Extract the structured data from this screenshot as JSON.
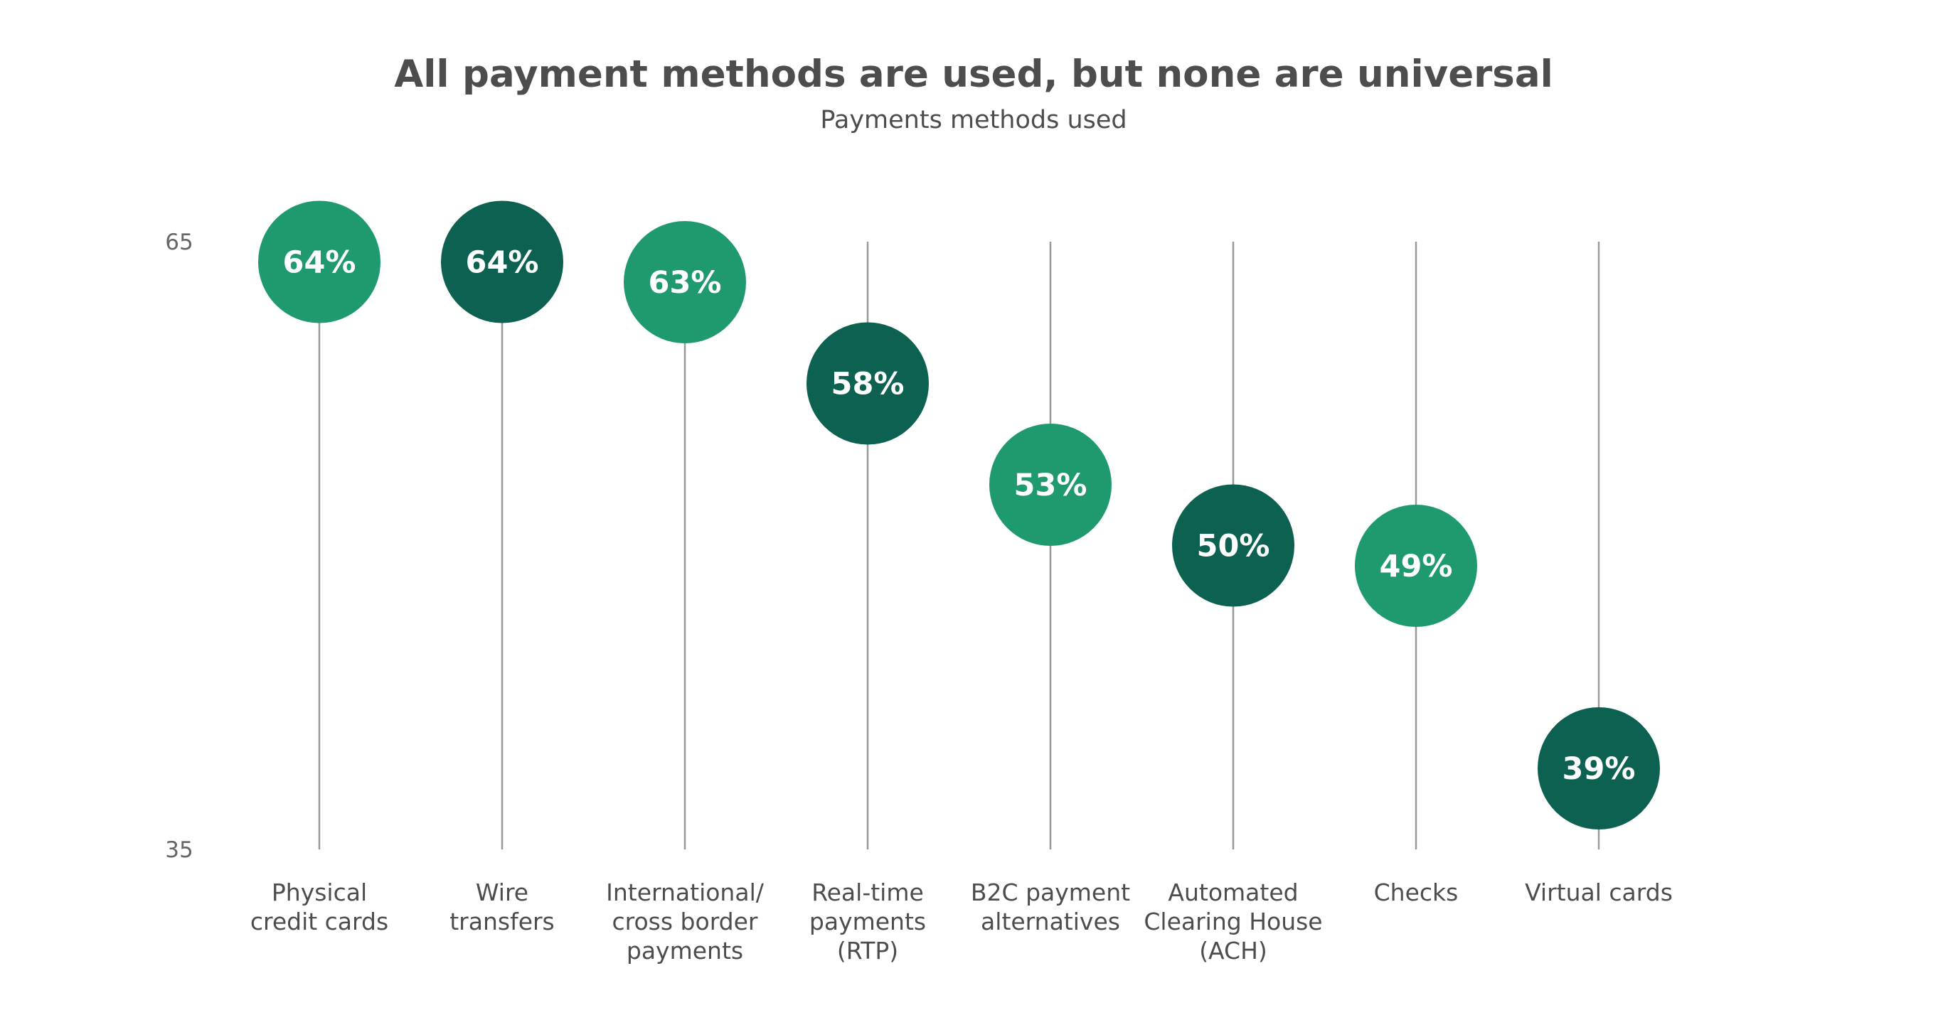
{
  "colors": {
    "light_green": "#1f9a6e",
    "dark_green": "#0c6150",
    "stem": "#999999",
    "text": "#4d4d4d"
  },
  "chart_data": {
    "type": "lollipop",
    "title": "All payment methods are used, but none are universal",
    "subtitle": "Payments methods used",
    "ylim": [
      35,
      65
    ],
    "y_ticks": [
      "65",
      "35"
    ],
    "grid": false,
    "legend": "none",
    "categories": [
      [
        "Physical",
        "credit cards"
      ],
      [
        "Wire",
        "transfers"
      ],
      [
        "International/",
        "cross border",
        "payments"
      ],
      [
        "Real-time",
        "payments",
        "(RTP)"
      ],
      [
        "B2C payment",
        "alternatives"
      ],
      [
        "Automated",
        "Clearing House",
        "(ACH)"
      ],
      [
        "Checks"
      ],
      [
        "Virtual cards"
      ]
    ],
    "values": [
      64,
      64,
      63,
      58,
      53,
      50,
      49,
      39
    ],
    "value_labels": [
      "64%",
      "64%",
      "63%",
      "58%",
      "53%",
      "50%",
      "49%",
      "39%"
    ],
    "point_colors": [
      "light_green",
      "dark_green",
      "light_green",
      "dark_green",
      "light_green",
      "dark_green",
      "light_green",
      "dark_green"
    ]
  }
}
